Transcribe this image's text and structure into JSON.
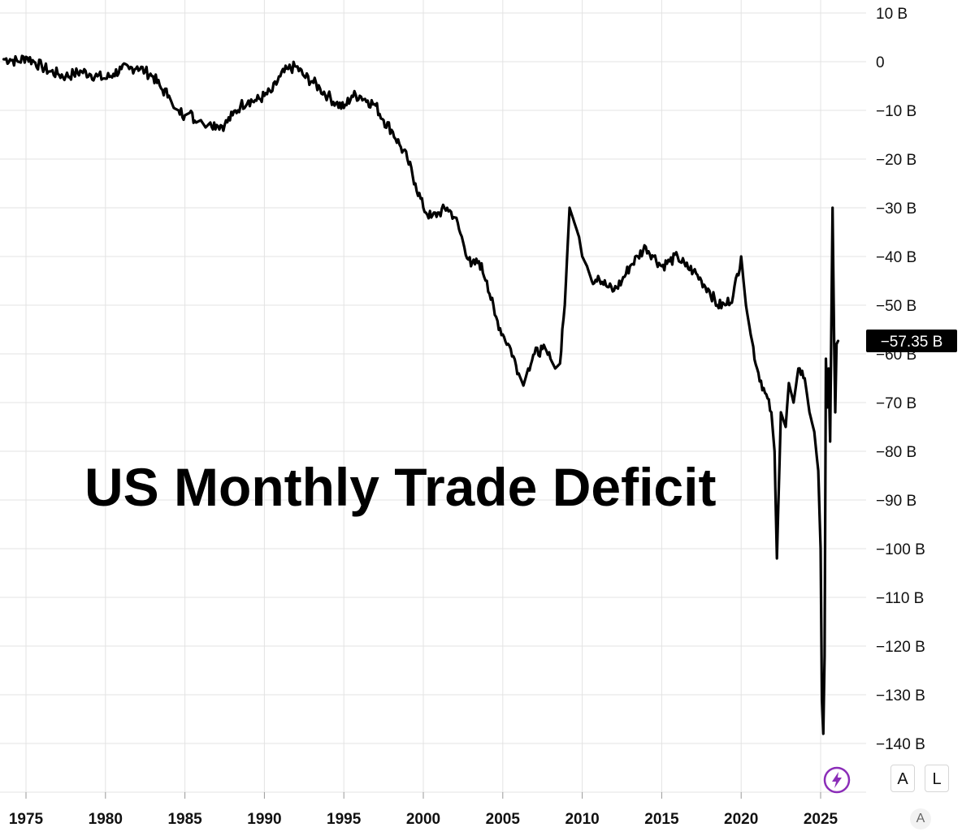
{
  "chart_data": {
    "type": "line",
    "title": "US Monthly Trade Deficit",
    "xlabel": "",
    "ylabel": "",
    "unit": "B",
    "x_ticks": [
      "1975",
      "1980",
      "1985",
      "1990",
      "1995",
      "2000",
      "2005",
      "2010",
      "2015",
      "2020",
      "2025"
    ],
    "y_ticks": [
      "10 B",
      "0",
      "−10 B",
      "−20 B",
      "−30 B",
      "−40 B",
      "−50 B",
      "−60 B",
      "−70 B",
      "−80 B",
      "−90 B",
      "−100 B",
      "−110 B",
      "−120 B",
      "−130 B",
      "−140 B"
    ],
    "xlim": [
      1973.5,
      2027
    ],
    "ylim": [
      -150,
      10
    ],
    "grid": true,
    "last_value_label": "−57.35 B",
    "series": [
      {
        "x": [
          1973.6,
          1974.0,
          1974.5,
          1975.0,
          1975.5,
          1976.0,
          1976.5,
          1977.0,
          1977.5,
          1978.0,
          1978.5,
          1979.0,
          1979.5,
          1980.0,
          1980.5,
          1981.0,
          1981.5,
          1982.0,
          1982.5,
          1983.0,
          1983.5,
          1984.0,
          1984.3,
          1984.6,
          1985.0,
          1985.3,
          1985.7,
          1986.0,
          1986.3,
          1986.6,
          1987.0,
          1987.5,
          1988.0,
          1988.5,
          1989.0,
          1989.5,
          1990.0,
          1990.5,
          1991.0,
          1991.5,
          1992.0,
          1992.5,
          1993.0,
          1993.5,
          1994.0,
          1994.5,
          1995.0,
          1995.5,
          1996.0,
          1996.5,
          1997.0,
          1997.5,
          1998.0,
          1998.5,
          1999.0,
          1999.5,
          2000.0,
          2000.5,
          2001.0,
          2001.5,
          2002.0,
          2002.5,
          2003.0,
          2003.5,
          2004.0,
          2004.5,
          2005.0,
          2005.5,
          2006.0,
          2006.3,
          2006.6,
          2007.0,
          2007.5,
          2008.0,
          2008.3,
          2008.6,
          2008.9,
          2009.2,
          2009.5,
          2009.8,
          2010.0,
          2010.3,
          2010.6,
          2011.0,
          2011.5,
          2012.0,
          2012.5,
          2013.0,
          2013.5,
          2014.0,
          2014.5,
          2015.0,
          2015.5,
          2016.0,
          2016.5,
          2017.0,
          2017.5,
          2018.0,
          2018.5,
          2019.0,
          2019.5,
          2020.0,
          2020.3,
          2020.6,
          2021.0,
          2021.5,
          2021.9,
          2022.1,
          2022.25,
          2022.5,
          2022.8,
          2023.0,
          2023.3,
          2023.6,
          2024.0,
          2024.3,
          2024.6,
          2024.85,
          2025.0,
          2025.08,
          2025.17,
          2025.25,
          2025.33,
          2025.42,
          2025.5,
          2025.6,
          2025.75,
          2025.85,
          2025.92,
          2026.0,
          2026.1
        ],
        "y": [
          0.5,
          0.5,
          0.0,
          1.0,
          0.0,
          -1.0,
          -2.0,
          -2.5,
          -3.0,
          -2.5,
          -2.0,
          -2.5,
          -3.0,
          -3.5,
          -2.5,
          -1.5,
          -1.5,
          -1.0,
          -2.0,
          -3.0,
          -5.5,
          -7.0,
          -9.5,
          -10.0,
          -11.0,
          -10.5,
          -12.5,
          -12.0,
          -13.5,
          -12.5,
          -13.0,
          -13.0,
          -11.0,
          -9.0,
          -8.0,
          -8.0,
          -7.0,
          -6.0,
          -3.0,
          -1.5,
          -1.0,
          -3.0,
          -4.0,
          -5.5,
          -7.0,
          -8.5,
          -9.5,
          -7.0,
          -7.0,
          -8.0,
          -9.0,
          -12.0,
          -14.0,
          -17.0,
          -20.0,
          -25.0,
          -30.0,
          -32.0,
          -31.0,
          -30.0,
          -32.0,
          -37.0,
          -42.0,
          -41.0,
          -45.0,
          -52.0,
          -56.0,
          -59.0,
          -64.0,
          -66.5,
          -63.0,
          -60.0,
          -59.0,
          -61.0,
          -63.0,
          -62.0,
          -50.0,
          -30.0,
          -33.0,
          -36.0,
          -40.0,
          -42.0,
          -45.0,
          -44.0,
          -46.0,
          -47.0,
          -45.0,
          -42.0,
          -40.0,
          -38.0,
          -40.0,
          -42.0,
          -41.0,
          -40.0,
          -42.0,
          -43.0,
          -45.0,
          -47.0,
          -50.0,
          -50.0,
          -48.0,
          -40.0,
          -50.0,
          -56.0,
          -63.0,
          -68.0,
          -72.0,
          -80.0,
          -102.0,
          -72.0,
          -75.0,
          -66.0,
          -70.0,
          -63.0,
          -65.0,
          -72.0,
          -76.0,
          -84.0,
          -100.0,
          -131.0,
          -138.0,
          -122.0,
          -61.0,
          -71.0,
          -63.0,
          -78.0,
          -30.0,
          -57.0,
          -72.0,
          -58.0,
          -57.35
        ]
      }
    ]
  },
  "controls": {
    "auto_label": "A",
    "log_label": "L",
    "axis_auto_label": "A",
    "bolt_icon": "lightning-bolt-icon",
    "accent_color": "#8b2db8"
  }
}
